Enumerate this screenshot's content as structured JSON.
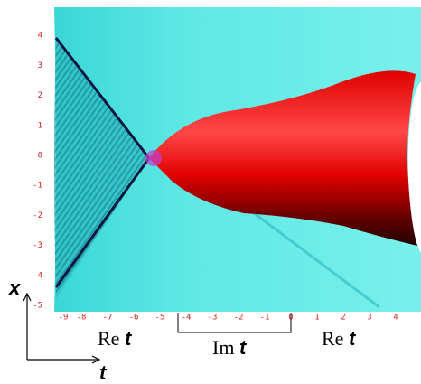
{
  "x_axis": {
    "label": "x",
    "ticks": [
      4,
      3,
      2,
      1,
      0,
      -1,
      -2,
      -3,
      -4,
      -5
    ]
  },
  "t_axis": {
    "label": "t",
    "ticks": [
      -9,
      -8,
      -7,
      -6,
      -5,
      -4,
      -3,
      -2,
      -1,
      0,
      1,
      2,
      3,
      4
    ]
  },
  "annotations": [
    {
      "prefix": "Re",
      "variable": "t"
    },
    {
      "prefix": "Im",
      "variable": "t"
    },
    {
      "prefix": "Re",
      "variable": "t"
    }
  ]
}
